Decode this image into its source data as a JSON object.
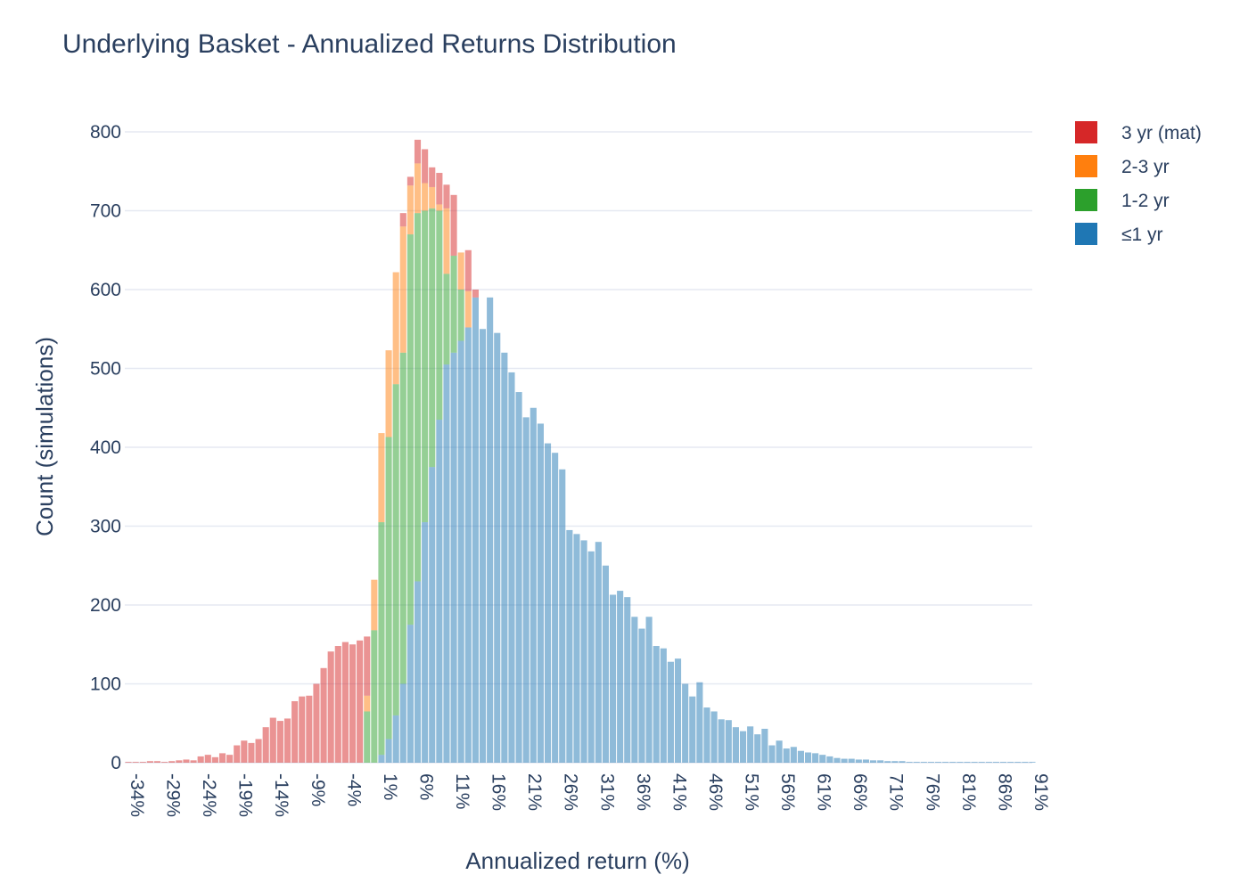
{
  "chart_data": {
    "type": "bar",
    "stacking": "overlay-cumulative",
    "title": "Underlying Basket - Annualized Returns Distribution",
    "xlabel": "Annualized return (%)",
    "ylabel": "Count (simulations)",
    "ylim": [
      0,
      800
    ],
    "yticks": [
      0,
      100,
      200,
      300,
      400,
      500,
      600,
      700,
      800
    ],
    "xlim": [
      -34,
      91.5
    ],
    "bin_start": -34,
    "bin_width": 1,
    "xtick_labels": [
      "-34%",
      "-29%",
      "-24%",
      "-19%",
      "-14%",
      "-9%",
      "-4%",
      "1%",
      "6%",
      "11%",
      "16%",
      "21%",
      "26%",
      "31%",
      "36%",
      "41%",
      "46%",
      "51%",
      "56%",
      "61%",
      "66%",
      "71%",
      "76%",
      "81%",
      "86%",
      "91%"
    ],
    "xtick_values": [
      -34,
      -29,
      -24,
      -19,
      -14,
      -9,
      -4,
      1,
      6,
      11,
      16,
      21,
      26,
      31,
      36,
      41,
      46,
      51,
      56,
      61,
      66,
      71,
      76,
      81,
      86,
      91
    ],
    "legend_position": "top-right",
    "grid": true,
    "series": [
      {
        "name": "3 yr (mat)",
        "color": "#d62728",
        "values": [
          1,
          1,
          1,
          2,
          2,
          1,
          2,
          3,
          4,
          3,
          8,
          10,
          7,
          12,
          10,
          22,
          28,
          25,
          30,
          45,
          57,
          53,
          56,
          78,
          84,
          85,
          100,
          120,
          141,
          148,
          153,
          150,
          155,
          158,
          0,
          0,
          0,
          0,
          0,
          0,
          0,
          0,
          0,
          0,
          0,
          0,
          0,
          0,
          0,
          0,
          0,
          0,
          0,
          0,
          0,
          0,
          0,
          0,
          0,
          0,
          0,
          0,
          0,
          0,
          0,
          0,
          0,
          0,
          0,
          0,
          0,
          0,
          0,
          0,
          0,
          0,
          0,
          0,
          0,
          0,
          0,
          0,
          0,
          0,
          0,
          0,
          0,
          0,
          0,
          0,
          0,
          0,
          0,
          0,
          0,
          0,
          0,
          0,
          0,
          0,
          0,
          0,
          0,
          0,
          0,
          0,
          0,
          0,
          0,
          0,
          0,
          0,
          0,
          0,
          0,
          0,
          0,
          0,
          0,
          0,
          0,
          0,
          0,
          0,
          0,
          0
        ]
      },
      {
        "name": "2-3 yr",
        "color": "#ff7f0e",
        "values": []
      },
      {
        "name": "1-2 yr",
        "color": "#2ca02c",
        "values": []
      },
      {
        "name": "≤1 yr",
        "color": "#1f77b4",
        "values": []
      }
    ],
    "cumulative_heights": {
      "le1": [
        0,
        0,
        0,
        0,
        0,
        0,
        0,
        0,
        0,
        0,
        0,
        0,
        0,
        0,
        0,
        0,
        0,
        0,
        0,
        0,
        0,
        0,
        0,
        0,
        0,
        0,
        0,
        0,
        0,
        0,
        0,
        0,
        0,
        0,
        0,
        10,
        30,
        60,
        100,
        175,
        230,
        305,
        375,
        435,
        505,
        520,
        535,
        552,
        590,
        550,
        590,
        545,
        520,
        495,
        470,
        438,
        450,
        430,
        405,
        393,
        372,
        295,
        290,
        282,
        268,
        280,
        250,
        213,
        218,
        210,
        185,
        170,
        185,
        148,
        145,
        128,
        132,
        100,
        84,
        102,
        70,
        65,
        55,
        54,
        45,
        40,
        46,
        36,
        43,
        22,
        28,
        18,
        20,
        15,
        13,
        12,
        10,
        8,
        6,
        5,
        5,
        4,
        4,
        3,
        3,
        2,
        2,
        2,
        1,
        1,
        1,
        1,
        1,
        1,
        1,
        1,
        1,
        1,
        1,
        1,
        1,
        1,
        1,
        1,
        1,
        1,
        1
      ]
    }
  }
}
